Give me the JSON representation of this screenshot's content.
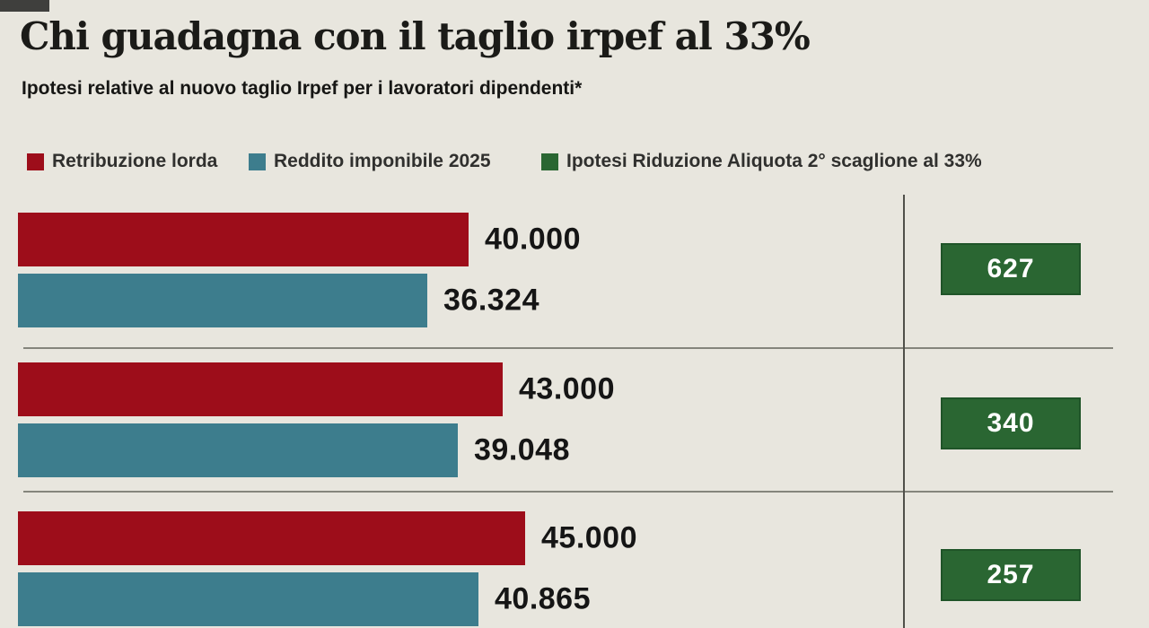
{
  "page": {
    "background": "#e8e6de"
  },
  "header": {
    "title": "Chi guadagna con il taglio irpef al 33%",
    "subtitle": "Ipotesi relative al nuovo taglio Irpef per i lavoratori dipendenti*"
  },
  "legend": [
    {
      "label": "Retribuzione lorda",
      "color": "#9d0d1a"
    },
    {
      "label": "Reddito imponibile 2025",
      "color": "#3d7d8d"
    },
    {
      "label": "Ipotesi Riduzione Aliquota 2° scaglione al 33%",
      "color": "#2a6632"
    }
  ],
  "chart_data": {
    "type": "bar",
    "orientation": "horizontal",
    "title": "Chi guadagna con il taglio irpef al 33%",
    "subtitle": "Ipotesi relative al nuovo taglio Irpef per i lavoratori dipendenti*",
    "categories": [
      "40.000",
      "43.000",
      "45.000"
    ],
    "series": [
      {
        "name": "Retribuzione lorda",
        "color": "#9d0d1a",
        "values": [
          40000,
          43000,
          45000
        ],
        "labels": [
          "40.000",
          "43.000",
          "45.000"
        ]
      },
      {
        "name": "Reddito imponibile 2025",
        "color": "#3d7d8d",
        "values": [
          36324,
          39048,
          40865
        ],
        "labels": [
          "36.324",
          "39.048",
          "40.865"
        ]
      },
      {
        "name": "Ipotesi Riduzione Aliquota 2° scaglione al 33%",
        "color": "#2a6632",
        "values": [
          627,
          340,
          257
        ],
        "labels": [
          "627",
          "340",
          "257"
        ]
      }
    ],
    "xlim": [
      0,
      46000
    ],
    "grid": false,
    "legend_position": "top"
  }
}
